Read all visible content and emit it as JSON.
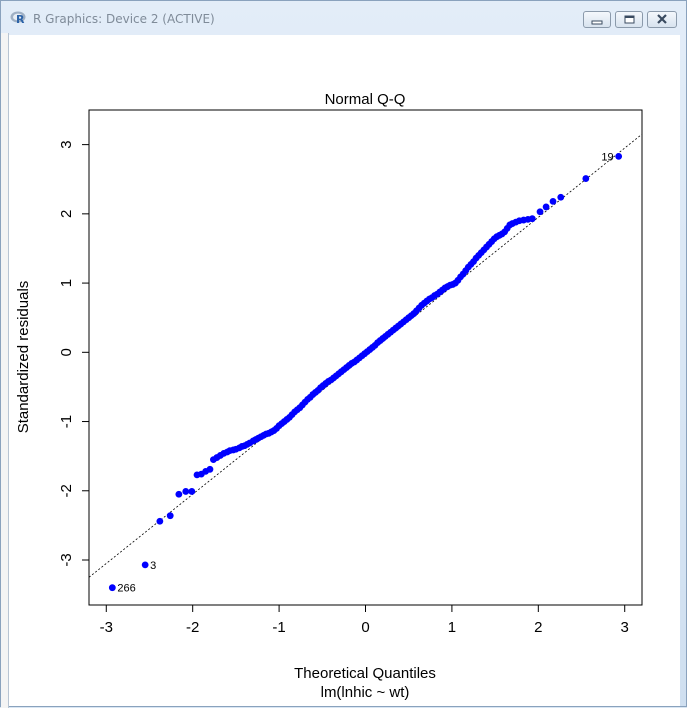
{
  "window": {
    "title": "R Graphics: Device 2 (ACTIVE)",
    "app_icon": "r-logo-icon",
    "buttons": [
      "minimize-icon",
      "restore-icon",
      "close-icon"
    ]
  },
  "chart_data": {
    "type": "scatter",
    "title": "Normal Q-Q",
    "xlabel": "Theoretical Quantiles",
    "ylabel": "Standardized residuals",
    "subtitle": "lm(lnhic ~ wt)",
    "xlim": [
      -3.2,
      3.2
    ],
    "ylim": [
      -3.65,
      3.5
    ],
    "xticks": [
      "-3",
      "-2",
      "-1",
      "0",
      "1",
      "2",
      "3"
    ],
    "yticks": [
      "-3",
      "-2",
      "-1",
      "0",
      "1",
      "2",
      "3"
    ],
    "point_color": "#0000ff",
    "reference_line": {
      "slope": 1.0,
      "intercept": -0.05,
      "style": "dotted"
    },
    "labeled_points": [
      {
        "label": "19",
        "x": 2.93,
        "y": 2.83
      },
      {
        "label": "3",
        "x": -2.55,
        "y": -3.07
      },
      {
        "label": "266",
        "x": -2.93,
        "y": -3.4
      }
    ],
    "points": [
      [
        -2.93,
        -3.4
      ],
      [
        -2.55,
        -3.07
      ],
      [
        -2.38,
        -2.44
      ],
      [
        -2.26,
        -2.36
      ],
      [
        -2.16,
        -2.05
      ],
      [
        -2.08,
        -2.01
      ],
      [
        -2.01,
        -2.01
      ],
      [
        -1.95,
        -1.77
      ],
      [
        -1.9,
        -1.76
      ],
      [
        -1.85,
        -1.72
      ],
      [
        -1.8,
        -1.69
      ],
      [
        -1.76,
        -1.55
      ],
      [
        -1.72,
        -1.52
      ],
      [
        -1.68,
        -1.49
      ],
      [
        -1.64,
        -1.46
      ],
      [
        -1.6,
        -1.44
      ],
      [
        -1.57,
        -1.42
      ],
      [
        -1.53,
        -1.41
      ],
      [
        -1.5,
        -1.4
      ],
      [
        -1.46,
        -1.38
      ],
      [
        -1.43,
        -1.36
      ],
      [
        -1.4,
        -1.35
      ],
      [
        -1.37,
        -1.33
      ],
      [
        -1.34,
        -1.31
      ],
      [
        -1.3,
        -1.28
      ],
      [
        -1.27,
        -1.26
      ],
      [
        -1.24,
        -1.24
      ],
      [
        -1.21,
        -1.22
      ],
      [
        -1.18,
        -1.2
      ],
      [
        -1.15,
        -1.18
      ],
      [
        -1.12,
        -1.17
      ],
      [
        -1.09,
        -1.15
      ],
      [
        -1.06,
        -1.13
      ],
      [
        -1.03,
        -1.1
      ],
      [
        -1.0,
        -1.06
      ],
      [
        -0.97,
        -1.03
      ],
      [
        -0.94,
        -1.0
      ],
      [
        -0.91,
        -0.97
      ],
      [
        -0.88,
        -0.94
      ],
      [
        -0.85,
        -0.9
      ],
      [
        -0.82,
        -0.86
      ],
      [
        -0.79,
        -0.83
      ],
      [
        -0.76,
        -0.8
      ],
      [
        -0.73,
        -0.76
      ],
      [
        -0.7,
        -0.72
      ],
      [
        -0.67,
        -0.68
      ],
      [
        -0.64,
        -0.65
      ],
      [
        -0.61,
        -0.61
      ],
      [
        -0.58,
        -0.58
      ],
      [
        -0.55,
        -0.55
      ],
      [
        -0.52,
        -0.51
      ],
      [
        -0.49,
        -0.48
      ],
      [
        -0.46,
        -0.45
      ],
      [
        -0.43,
        -0.42
      ],
      [
        -0.4,
        -0.4
      ],
      [
        -0.37,
        -0.37
      ],
      [
        -0.34,
        -0.34
      ],
      [
        -0.31,
        -0.31
      ],
      [
        -0.28,
        -0.28
      ],
      [
        -0.25,
        -0.25
      ],
      [
        -0.22,
        -0.22
      ],
      [
        -0.19,
        -0.19
      ],
      [
        -0.16,
        -0.16
      ],
      [
        -0.13,
        -0.14
      ],
      [
        -0.1,
        -0.11
      ],
      [
        -0.07,
        -0.08
      ],
      [
        -0.04,
        -0.05
      ],
      [
        -0.01,
        -0.02
      ],
      [
        0.02,
        0.01
      ],
      [
        0.05,
        0.04
      ],
      [
        0.08,
        0.07
      ],
      [
        0.11,
        0.1
      ],
      [
        0.14,
        0.14
      ],
      [
        0.17,
        0.17
      ],
      [
        0.2,
        0.2
      ],
      [
        0.23,
        0.23
      ],
      [
        0.26,
        0.26
      ],
      [
        0.29,
        0.29
      ],
      [
        0.32,
        0.32
      ],
      [
        0.35,
        0.35
      ],
      [
        0.38,
        0.38
      ],
      [
        0.41,
        0.41
      ],
      [
        0.44,
        0.44
      ],
      [
        0.47,
        0.47
      ],
      [
        0.5,
        0.5
      ],
      [
        0.53,
        0.53
      ],
      [
        0.56,
        0.56
      ],
      [
        0.59,
        0.6
      ],
      [
        0.62,
        0.64
      ],
      [
        0.65,
        0.68
      ],
      [
        0.68,
        0.71
      ],
      [
        0.71,
        0.74
      ],
      [
        0.74,
        0.77
      ],
      [
        0.77,
        0.79
      ],
      [
        0.8,
        0.82
      ],
      [
        0.83,
        0.84
      ],
      [
        0.86,
        0.87
      ],
      [
        0.89,
        0.9
      ],
      [
        0.92,
        0.93
      ],
      [
        0.95,
        0.95
      ],
      [
        0.98,
        0.97
      ],
      [
        1.01,
        0.98
      ],
      [
        1.04,
        1.0
      ],
      [
        1.07,
        1.04
      ],
      [
        1.1,
        1.09
      ],
      [
        1.13,
        1.13
      ],
      [
        1.16,
        1.18
      ],
      [
        1.19,
        1.23
      ],
      [
        1.22,
        1.27
      ],
      [
        1.25,
        1.31
      ],
      [
        1.28,
        1.36
      ],
      [
        1.31,
        1.4
      ],
      [
        1.34,
        1.44
      ],
      [
        1.37,
        1.48
      ],
      [
        1.4,
        1.52
      ],
      [
        1.43,
        1.56
      ],
      [
        1.46,
        1.6
      ],
      [
        1.49,
        1.64
      ],
      [
        1.52,
        1.67
      ],
      [
        1.55,
        1.69
      ],
      [
        1.58,
        1.71
      ],
      [
        1.61,
        1.74
      ],
      [
        1.64,
        1.79
      ],
      [
        1.67,
        1.84
      ],
      [
        1.7,
        1.86
      ],
      [
        1.74,
        1.88
      ],
      [
        1.78,
        1.9
      ],
      [
        1.83,
        1.91
      ],
      [
        1.88,
        1.92
      ],
      [
        1.93,
        1.93
      ],
      [
        2.02,
        2.03
      ],
      [
        2.09,
        2.1
      ],
      [
        2.17,
        2.18
      ],
      [
        2.26,
        2.24
      ],
      [
        2.55,
        2.51
      ],
      [
        2.93,
        2.83
      ]
    ]
  }
}
